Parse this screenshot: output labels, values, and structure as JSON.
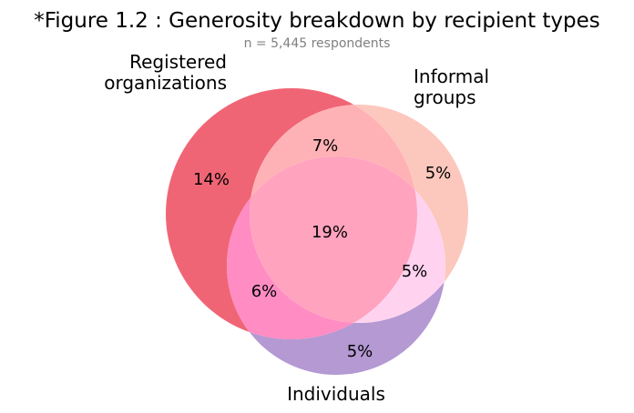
{
  "chart_data": {
    "type": "venn",
    "title": "*Figure 1.2 : Generosity breakdown by recipient types",
    "subtitle": "n = 5,445 respondents",
    "sets": [
      {
        "name": "Registered organizations",
        "label_lines": [
          "Registered",
          "organizations"
        ],
        "color": "#f06070"
      },
      {
        "name": "Informal groups",
        "label_lines": [
          "Informal",
          "groups"
        ],
        "color": "#fcc8bd"
      },
      {
        "name": "Individuals",
        "label_lines": [
          "Individuals"
        ],
        "color": "#b499d2"
      }
    ],
    "regions": [
      {
        "sets": [
          "Registered organizations"
        ],
        "label": "14%",
        "value": 14
      },
      {
        "sets": [
          "Informal groups"
        ],
        "label": "5%",
        "value": 5
      },
      {
        "sets": [
          "Individuals"
        ],
        "label": "5%",
        "value": 5
      },
      {
        "sets": [
          "Registered organizations",
          "Informal groups"
        ],
        "label": "7%",
        "value": 7
      },
      {
        "sets": [
          "Registered organizations",
          "Individuals"
        ],
        "label": "6%",
        "value": 6
      },
      {
        "sets": [
          "Informal groups",
          "Individuals"
        ],
        "label": "5%",
        "value": 5
      },
      {
        "sets": [
          "Registered organizations",
          "Informal groups",
          "Individuals"
        ],
        "label": "19%",
        "value": 19
      }
    ],
    "region_colors": {
      "org_only": "#f06575",
      "informal_only": "#fcc8bd",
      "indiv_only": "#b499d2",
      "org_informal": "#ffb2b5",
      "org_indiv": "#ff8cc3",
      "informal_indiv": "#ffd3f0",
      "all_three": "#ffa3bf"
    }
  }
}
